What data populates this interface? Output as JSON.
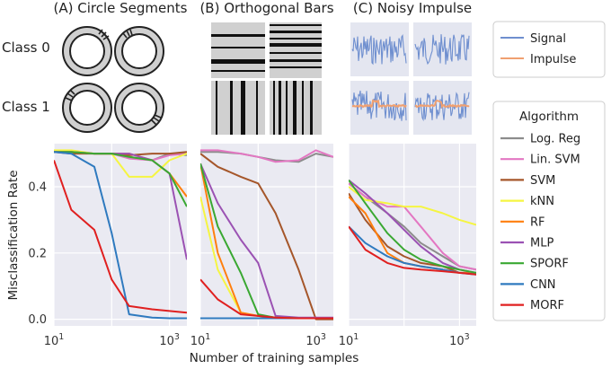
{
  "chart_data": {
    "type": "line",
    "panel_titles": [
      "(A) Circle Segments",
      "(B) Orthogonal Bars",
      "(C) Noisy Impulse"
    ],
    "class_labels": [
      "Class 0",
      "Class 1"
    ],
    "example_legend": [
      {
        "name": "Signal",
        "color": "#6f8fcf"
      },
      {
        "name": "Impulse",
        "color": "#f0a070"
      }
    ],
    "xlabel": "Number of training samples",
    "ylabel": "Misclassification Rate",
    "x_scale": "log",
    "xlim": [
      10,
      2000
    ],
    "ylim": [
      -0.02,
      0.53
    ],
    "x_tick_labels": [
      "10^1",
      "10^3"
    ],
    "y_tick_values": [
      0.0,
      0.2,
      0.4
    ],
    "y_tick_labels": [
      "0.0",
      "0.2",
      "0.4"
    ],
    "grid": true,
    "legend_title": "Algorithm",
    "legend_position": "right",
    "x": [
      10,
      20,
      50,
      100,
      200,
      500,
      1000,
      2000
    ],
    "series": [
      {
        "name": "Log. Reg",
        "color": "#8c8c8c"
      },
      {
        "name": "Lin. SVM",
        "color": "#e377c2"
      },
      {
        "name": "SVM",
        "color": "#a5562a"
      },
      {
        "name": "kNN",
        "color": "#f5f542"
      },
      {
        "name": "RF",
        "color": "#ff7f0e"
      },
      {
        "name": "MLP",
        "color": "#9b52b3"
      },
      {
        "name": "SPORF",
        "color": "#3aa832"
      },
      {
        "name": "CNN",
        "color": "#2f7abf"
      },
      {
        "name": "MORF",
        "color": "#e02020"
      }
    ],
    "panels": [
      {
        "name": "Circle Segments",
        "values": {
          "Log. Reg": [
            0.505,
            0.505,
            0.5,
            0.5,
            0.49,
            0.48,
            0.5,
            0.495
          ],
          "Lin. SVM": [
            0.505,
            0.505,
            0.5,
            0.5,
            0.485,
            0.48,
            0.495,
            0.5
          ],
          "SVM": [
            0.505,
            0.5,
            0.5,
            0.5,
            0.495,
            0.5,
            0.5,
            0.505
          ],
          "kNN": [
            0.51,
            0.51,
            0.5,
            0.5,
            0.43,
            0.43,
            0.48,
            0.5
          ],
          "RF": [
            0.505,
            0.505,
            0.5,
            0.5,
            0.5,
            0.48,
            0.44,
            0.37
          ],
          "MLP": [
            0.505,
            0.505,
            0.5,
            0.5,
            0.5,
            0.48,
            0.44,
            0.18
          ],
          "SPORF": [
            0.505,
            0.505,
            0.5,
            0.5,
            0.49,
            0.48,
            0.44,
            0.34
          ],
          "CNN": [
            0.505,
            0.5,
            0.46,
            0.26,
            0.015,
            0.005,
            0.003,
            0.003
          ],
          "MORF": [
            0.48,
            0.33,
            0.27,
            0.12,
            0.04,
            0.03,
            0.025,
            0.02
          ]
        }
      },
      {
        "name": "Orthogonal Bars",
        "values": {
          "Log. Reg": [
            0.505,
            0.505,
            0.5,
            0.49,
            0.48,
            0.475,
            0.5,
            0.49
          ],
          "Lin. SVM": [
            0.51,
            0.51,
            0.5,
            0.49,
            0.475,
            0.48,
            0.51,
            0.49
          ],
          "SVM": [
            0.5,
            0.46,
            0.43,
            0.41,
            0.32,
            0.15,
            0.0,
            0.0
          ],
          "kNN": [
            0.37,
            0.15,
            0.02,
            0.01,
            0.005,
            0.003,
            0.003,
            0.003
          ],
          "RF": [
            0.47,
            0.2,
            0.02,
            0.01,
            0.005,
            0.003,
            0.003,
            0.003
          ],
          "MLP": [
            0.47,
            0.35,
            0.24,
            0.17,
            0.01,
            0.005,
            0.005,
            0.005
          ],
          "SPORF": [
            0.47,
            0.28,
            0.14,
            0.015,
            0.005,
            0.003,
            0.003,
            0.003
          ],
          "CNN": [
            0.003,
            0.003,
            0.003,
            0.003,
            0.003,
            0.003,
            0.003,
            0.003
          ],
          "MORF": [
            0.12,
            0.06,
            0.015,
            0.01,
            0.005,
            0.003,
            0.003,
            0.003
          ]
        }
      },
      {
        "name": "Noisy Impulse",
        "values": {
          "Log. Reg": [
            0.41,
            0.37,
            0.32,
            0.28,
            0.23,
            0.19,
            0.16,
            0.15
          ],
          "Lin. SVM": [
            0.41,
            0.37,
            0.34,
            0.34,
            0.28,
            0.2,
            0.16,
            0.15
          ],
          "SVM": [
            0.38,
            0.3,
            0.22,
            0.19,
            0.17,
            0.16,
            0.14,
            0.14
          ],
          "kNN": [
            0.4,
            0.36,
            0.35,
            0.34,
            0.34,
            0.32,
            0.3,
            0.285
          ],
          "RF": [
            0.37,
            0.32,
            0.2,
            0.17,
            0.16,
            0.15,
            0.14,
            0.14
          ],
          "MLP": [
            0.42,
            0.38,
            0.32,
            0.27,
            0.22,
            0.17,
            0.15,
            0.14
          ],
          "SPORF": [
            0.42,
            0.35,
            0.26,
            0.21,
            0.18,
            0.16,
            0.15,
            0.14
          ],
          "CNN": [
            0.28,
            0.23,
            0.19,
            0.17,
            0.16,
            0.15,
            0.14,
            0.135
          ],
          "MORF": [
            0.28,
            0.21,
            0.17,
            0.155,
            0.15,
            0.145,
            0.14,
            0.135
          ]
        }
      }
    ]
  }
}
